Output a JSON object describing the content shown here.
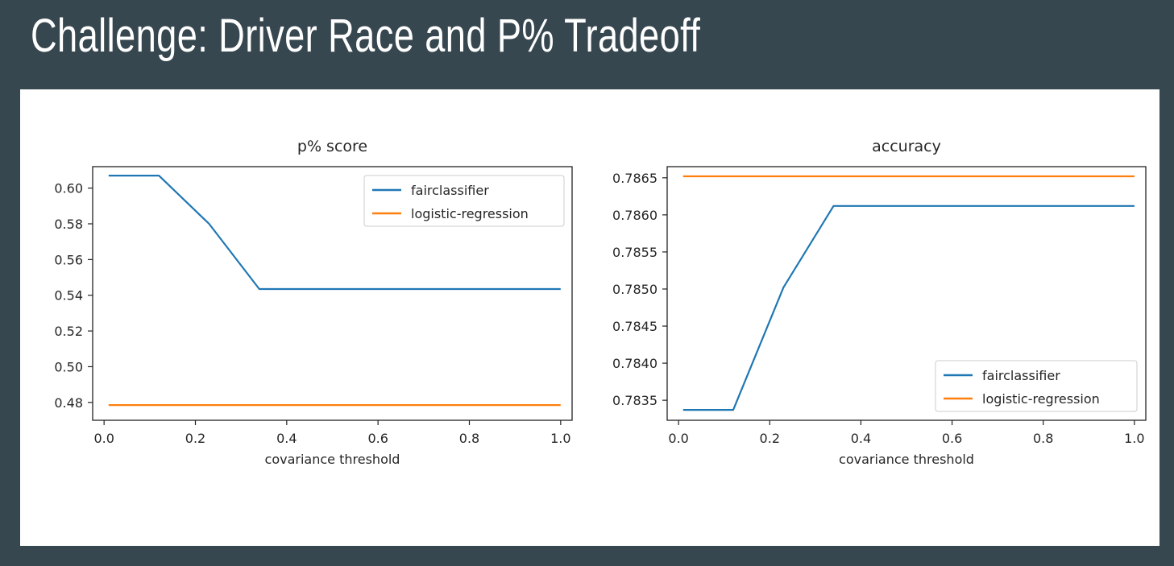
{
  "slide": {
    "title": "Challenge: Driver Race and P% Tradeoff"
  },
  "colors": {
    "background": "#37474f",
    "panel": "#ffffff",
    "fairclassifier": "#1f77b4",
    "logistic_regression": "#ff7f0e"
  },
  "chart_data": [
    {
      "type": "line",
      "title": "p% score",
      "xlabel": "covariance threshold",
      "ylabel": "",
      "xlim": [
        -0.025,
        1.025
      ],
      "ylim": [
        0.47,
        0.612
      ],
      "xticks": [
        0.0,
        0.2,
        0.4,
        0.6,
        0.8,
        1.0
      ],
      "xtick_labels": [
        "0.0",
        "0.2",
        "0.4",
        "0.6",
        "0.8",
        "1.0"
      ],
      "yticks": [
        0.48,
        0.5,
        0.52,
        0.54,
        0.56,
        0.58,
        0.6
      ],
      "ytick_labels": [
        "0.48",
        "0.50",
        "0.52",
        "0.54",
        "0.56",
        "0.58",
        "0.60"
      ],
      "legend_position": "top-right",
      "grid": false,
      "series": [
        {
          "name": "fairclassifier",
          "color": "#1f77b4",
          "x": [
            0.01,
            0.12,
            0.23,
            0.34,
            0.45,
            0.56,
            0.67,
            0.78,
            0.89,
            1.0
          ],
          "y": [
            0.607,
            0.607,
            0.58,
            0.5435,
            0.5435,
            0.5435,
            0.5435,
            0.5435,
            0.5435,
            0.5435
          ]
        },
        {
          "name": "logistic-regression",
          "color": "#ff7f0e",
          "x": [
            0.01,
            1.0
          ],
          "y": [
            0.4785,
            0.4785
          ]
        }
      ]
    },
    {
      "type": "line",
      "title": "accuracy",
      "xlabel": "covariance threshold",
      "ylabel": "",
      "xlim": [
        -0.025,
        1.025
      ],
      "ylim": [
        0.78323,
        0.78665
      ],
      "xticks": [
        0.0,
        0.2,
        0.4,
        0.6,
        0.8,
        1.0
      ],
      "xtick_labels": [
        "0.0",
        "0.2",
        "0.4",
        "0.6",
        "0.8",
        "1.0"
      ],
      "yticks": [
        0.7835,
        0.784,
        0.7845,
        0.785,
        0.7855,
        0.786,
        0.7865
      ],
      "ytick_labels": [
        "0.7835",
        "0.7840",
        "0.7845",
        "0.7850",
        "0.7855",
        "0.7860",
        "0.7865"
      ],
      "legend_position": "lower-right",
      "grid": false,
      "series": [
        {
          "name": "fairclassifier",
          "color": "#1f77b4",
          "x": [
            0.01,
            0.12,
            0.23,
            0.34,
            0.45,
            0.56,
            0.67,
            0.78,
            0.89,
            1.0
          ],
          "y": [
            0.78337,
            0.78337,
            0.78502,
            0.78612,
            0.78612,
            0.78612,
            0.78612,
            0.78612,
            0.78612,
            0.78612
          ]
        },
        {
          "name": "logistic-regression",
          "color": "#ff7f0e",
          "x": [
            0.01,
            1.0
          ],
          "y": [
            0.78652,
            0.78652
          ]
        }
      ]
    }
  ]
}
